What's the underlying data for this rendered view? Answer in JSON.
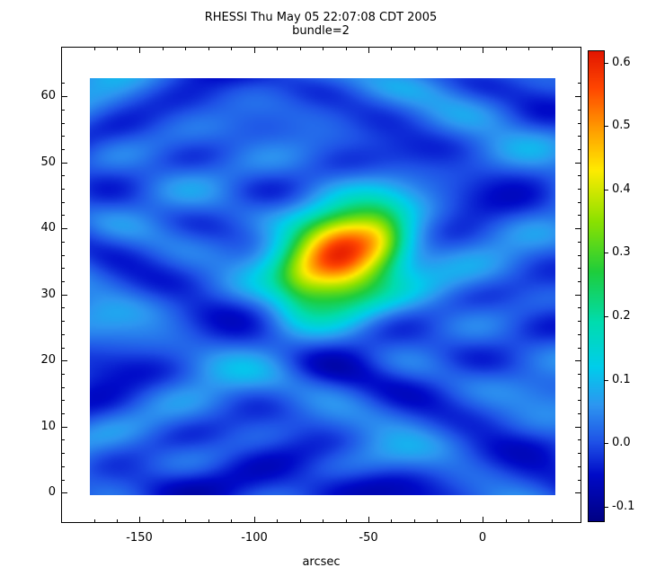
{
  "title": "RHESSI Thu May 05 22:07:08 CDT 2005",
  "subtitle": "bundle=2",
  "axes": {
    "xlabel": "arcsec",
    "x_ticks": [
      -150,
      -100,
      -50,
      0
    ],
    "y_ticks": [
      0,
      10,
      20,
      30,
      40,
      50,
      60
    ],
    "x_range": [
      -171.8,
      31.7
    ],
    "y_range": [
      -0.4,
      62.7
    ]
  },
  "colorbar": {
    "tick_labels": [
      "0.6",
      "0.5",
      "0.4",
      "0.3",
      "0.2",
      "0.1",
      "0.0",
      "-0.1"
    ],
    "tick_values": [
      0.6,
      0.5,
      0.4,
      0.3,
      0.2,
      0.1,
      0.0,
      -0.1
    ],
    "range": [
      -0.123,
      0.618
    ],
    "stops": [
      {
        "v": -0.125,
        "c": [
          0,
          0,
          130
        ]
      },
      {
        "v": -0.05,
        "c": [
          0,
          10,
          200
        ]
      },
      {
        "v": 0.0,
        "c": [
          30,
          80,
          230
        ]
      },
      {
        "v": 0.06,
        "c": [
          45,
          150,
          240
        ]
      },
      {
        "v": 0.12,
        "c": [
          0,
          205,
          235
        ]
      },
      {
        "v": 0.19,
        "c": [
          0,
          220,
          175
        ]
      },
      {
        "v": 0.27,
        "c": [
          30,
          205,
          60
        ]
      },
      {
        "v": 0.35,
        "c": [
          140,
          225,
          0
        ]
      },
      {
        "v": 0.43,
        "c": [
          255,
          235,
          0
        ]
      },
      {
        "v": 0.5,
        "c": [
          255,
          150,
          0
        ]
      },
      {
        "v": 0.56,
        "c": [
          255,
          70,
          0
        ]
      },
      {
        "v": 0.62,
        "c": [
          225,
          20,
          0
        ]
      }
    ]
  },
  "chart_data": {
    "type": "heatmap",
    "title": "RHESSI Thu May 05 22:07:08 CDT 2005",
    "subtitle": "bundle=2",
    "xlabel": "arcsec",
    "x_range": [
      -171.8,
      31.7
    ],
    "y_range": [
      -0.4,
      62.7
    ],
    "value_range": [
      -0.12,
      0.62
    ],
    "colormap": "rainbow blue-cyan-green-yellow-red",
    "background_level": 0.0,
    "ripple_amplitude": 0.06,
    "hotspot": {
      "x": -62,
      "y": 35.5,
      "peak": 0.62,
      "sigma_x": 18,
      "sigma_y": 5.3
    },
    "field": {
      "base": 0.012,
      "clamp": [
        -0.125,
        0.62
      ],
      "ripples": [
        {
          "a": 0.042,
          "kx": 0.075,
          "px": 0.4,
          "ky": 0.48,
          "py": 1.77,
          "wy": 0.8,
          "wk": 0.28,
          "wp": 1.2
        },
        {
          "a": 0.034,
          "kx": 0.055,
          "px": 0.97,
          "ky": 0.34,
          "py": 2.2
        },
        {
          "a": 0.028,
          "kx": 0.1,
          "px": 2.0,
          "ky": 0.6,
          "py": -0.8
        },
        {
          "a": 0.02,
          "kx": 0.04,
          "px": 2.6,
          "ky": 0.22,
          "py": 0.9
        }
      ],
      "blobs": [
        {
          "x": -62,
          "y": 35.5,
          "sx": 18,
          "sy": 5.3,
          "a": 0.58,
          "rho": 0.22
        },
        {
          "x": -44,
          "y": 38.5,
          "sx": 7,
          "sy": 3.2,
          "a": 0.07
        },
        {
          "x": -80,
          "y": 30.5,
          "sx": 7,
          "sy": 3.0,
          "a": 0.05
        },
        {
          "x": -60,
          "y": 23,
          "sx": 16,
          "sy": 3.5,
          "a": -0.045
        },
        {
          "x": -62,
          "y": 49,
          "sx": 14,
          "sy": 3.0,
          "a": -0.03
        },
        {
          "x": -70,
          "y": 0.5,
          "sx": 90,
          "sy": 2.5,
          "a": -0.05
        }
      ]
    }
  }
}
